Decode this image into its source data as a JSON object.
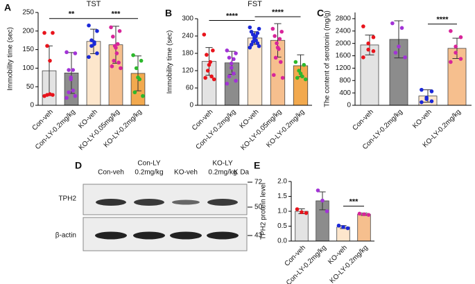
{
  "chart_data": [
    {
      "type": "bar",
      "panel_label": "A",
      "title": "TST",
      "ylabel": "Immobility time (sec)",
      "categories": [
        "Con-veh",
        "Con-LY-0.2mg/kg",
        "KO-veh",
        "KO-LY-0.05mg/kg",
        "KO-LY-0.2mg/kg"
      ],
      "values": [
        93,
        87,
        172,
        163,
        86
      ],
      "errors": [
        67,
        55,
        33,
        50,
        47
      ],
      "points": [
        [
          195,
          195,
          160,
          120,
          30,
          28,
          28,
          25
        ],
        [
          143,
          140,
          95,
          95,
          75,
          70,
          40,
          35,
          25,
          20
        ],
        [
          215,
          200,
          175,
          170,
          165,
          160,
          140,
          130
        ],
        [
          210,
          200,
          185,
          165,
          160,
          155,
          140,
          120,
          115,
          105,
          100
        ],
        [
          135,
          120,
          100,
          75,
          70,
          35,
          25
        ]
      ],
      "colors": [
        "#e3e3e3",
        "#8c8c8c",
        "#fde6cc",
        "#f6bf8e",
        "#f2a94e"
      ],
      "point_colors": [
        "#e8141c",
        "#a233d6",
        "#1b28d8",
        "#d8259a",
        "#2db82d"
      ],
      "ylim": [
        0,
        250
      ],
      "yticks": [
        0,
        50,
        100,
        150,
        200,
        250
      ],
      "significance": [
        {
          "between": [
            "Con-veh",
            "KO-veh"
          ],
          "label": "**"
        },
        {
          "between": [
            "KO-veh",
            "KO-LY-0.2mg/kg"
          ],
          "label": "***"
        }
      ]
    },
    {
      "type": "bar",
      "panel_label": "B",
      "title": "FST",
      "ylabel": "Immobility time (sec)",
      "categories": [
        "Con-veh",
        "Con-LY-0.2mg/kg",
        "KO-veh",
        "KO-LY-0.05mg/kg",
        "KO-LY-0.2mg/kg"
      ],
      "values": [
        152,
        147,
        233,
        225,
        137
      ],
      "errors": [
        48,
        40,
        22,
        58,
        38
      ],
      "points": [
        [
          245,
          190,
          175,
          150,
          140,
          120,
          100,
          95,
          90
        ],
        [
          190,
          180,
          165,
          160,
          145,
          130,
          110,
          100,
          85,
          75
        ],
        [
          270,
          265,
          255,
          250,
          245,
          240,
          235,
          230,
          225,
          220,
          215,
          210,
          205,
          200
        ],
        [
          265,
          255,
          240,
          230,
          215,
          200,
          195,
          165,
          150,
          105,
          95
        ],
        [
          150,
          140,
          120,
          110,
          100,
          95,
          90
        ]
      ],
      "colors": [
        "#e3e3e3",
        "#8c8c8c",
        "#fde6cc",
        "#f6bf8e",
        "#f2a94e"
      ],
      "point_colors": [
        "#e8141c",
        "#a233d6",
        "#1b28d8",
        "#d8259a",
        "#2db82d"
      ],
      "ylim": [
        0,
        300
      ],
      "yticks": [
        0,
        60,
        120,
        180,
        240,
        300
      ],
      "significance": [
        {
          "between": [
            "Con-veh",
            "KO-veh"
          ],
          "label": "****"
        },
        {
          "between": [
            "KO-veh",
            "KO-LY-0.2mg/kg"
          ],
          "label": "****"
        }
      ]
    },
    {
      "type": "bar",
      "panel_label": "C",
      "ylabel": "The content of serotonin  (mg/g)",
      "categories": [
        "Con-veh",
        "Con-LY-0.2mg/kg",
        "KO-veh",
        "KO-LY-0.2mg/kg"
      ],
      "values": [
        1950,
        2130,
        300,
        1840
      ],
      "errors": [
        320,
        600,
        200,
        330
      ],
      "points": [
        [
          2550,
          2200,
          2000,
          1800,
          1750,
          1550
        ],
        [
          2650,
          2500,
          1900,
          1700,
          1550
        ],
        [
          500,
          450,
          250,
          200,
          130,
          100
        ],
        [
          2400,
          2200,
          1900,
          1700,
          1500,
          1400
        ]
      ],
      "colors": [
        "#e3e3e3",
        "#8c8c8c",
        "#fde6cc",
        "#f6bf8e"
      ],
      "point_colors": [
        "#e8141c",
        "#a233d6",
        "#1b28d8",
        "#d8259a"
      ],
      "ylim": [
        0,
        3000
      ],
      "yticks": [
        0,
        400,
        800,
        1200,
        1600,
        2000,
        2400,
        2800
      ],
      "significance": [
        {
          "between": [
            "KO-veh",
            "KO-LY-0.2mg/kg"
          ],
          "label": "****"
        }
      ]
    },
    {
      "type": "bar",
      "panel_label": "E",
      "ylabel": "TPH2 protein level",
      "categories": [
        "Con-veh",
        "Con-LY-0.2mg/kg",
        "KO-veh",
        "KO-LY-0.2mg/kg"
      ],
      "values": [
        1.0,
        1.35,
        0.47,
        0.9
      ],
      "errors": [
        0.08,
        0.3,
        0.05,
        0.04
      ],
      "points": [
        [
          1.07,
          0.97,
          0.94
        ],
        [
          1.7,
          1.36,
          1.0
        ],
        [
          0.52,
          0.47,
          0.43
        ],
        [
          0.92,
          0.9,
          0.88
        ]
      ],
      "colors": [
        "#e3e3e3",
        "#8c8c8c",
        "#fde6cc",
        "#f6bf8e"
      ],
      "point_colors": [
        "#e8141c",
        "#a233d6",
        "#1b28d8",
        "#d8259a"
      ],
      "ylim": [
        0,
        2
      ],
      "yticks": [
        {
          "value": 0,
          "label": "0.0"
        },
        0.5,
        {
          "value": 1,
          "label": "1.0"
        },
        1.5,
        {
          "value": 2,
          "label": "2.0"
        }
      ],
      "significance": [
        {
          "between": [
            "KO-veh",
            "KO-LY-0.2mg/kg"
          ],
          "label": "***"
        }
      ]
    }
  ],
  "western_blot": {
    "panel_label": "D",
    "lanes": [
      [
        "Con-veh"
      ],
      [
        "Con-LY",
        "0.2mg/kg"
      ],
      [
        "KO-veh"
      ],
      [
        "KO-LY",
        "0.2mg/kg"
      ]
    ],
    "unit": "K Da",
    "rows": [
      "TPH2",
      "β-actin"
    ],
    "markers": [
      72,
      50,
      43
    ]
  }
}
